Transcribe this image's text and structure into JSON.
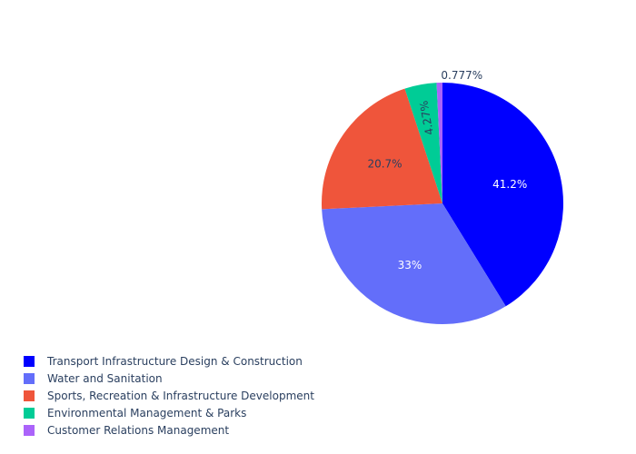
{
  "chart_data": {
    "type": "pie",
    "title": "",
    "labels": [
      "Transport Infrastructure Design & Construction",
      "Water and Sanitation",
      "Sports, Recreation & Infrastructure Development",
      "Environmental Management & Parks",
      "Customer Relations Management"
    ],
    "values": [
      41.2,
      33,
      20.7,
      4.27,
      0.777
    ],
    "value_labels": [
      "41.2%",
      "33%",
      "20.7%",
      "4.27%",
      "0.777%"
    ],
    "colors": [
      "#0000ff",
      "#636efa",
      "#ef553b",
      "#00cc96",
      "#ab63fa"
    ],
    "label_colors": [
      "#ffffff",
      "#ffffff",
      "#2a3f5f",
      "#2a3f5f",
      "#2a3f5f"
    ],
    "direction": "clockwise",
    "start_angle": "top",
    "legend_placement": "bottom-left"
  }
}
